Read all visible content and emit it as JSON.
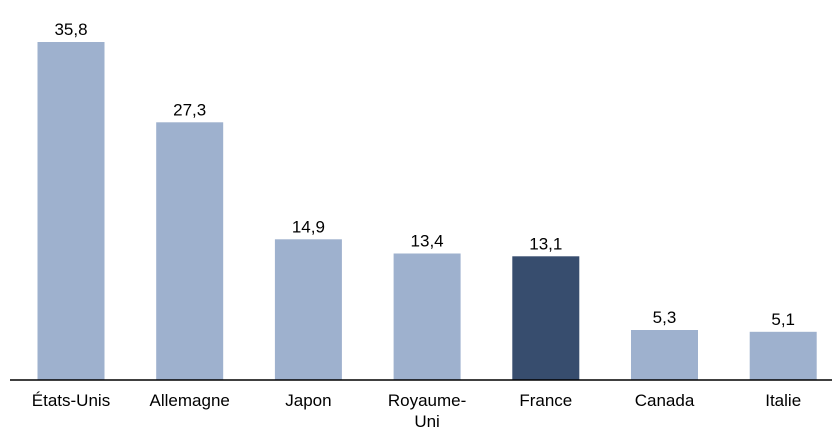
{
  "chart_data": {
    "type": "bar",
    "title": "",
    "xlabel": "",
    "ylabel": "",
    "categories": [
      "États-Unis",
      "Allemagne",
      "Japon",
      "Royaume-Uni",
      "France",
      "Canada",
      "Italie"
    ],
    "category_label_lines": [
      [
        "États-Unis"
      ],
      [
        "Allemagne"
      ],
      [
        "Japon"
      ],
      [
        "Royaume-",
        "Uni"
      ],
      [
        "France"
      ],
      [
        "Canada"
      ],
      [
        "Italie"
      ]
    ],
    "values": [
      35.8,
      27.3,
      14.9,
      13.4,
      13.1,
      5.3,
      5.1
    ],
    "value_labels": [
      "35,8",
      "27,3",
      "14,9",
      "13,4",
      "13,1",
      "5,3",
      "5,1"
    ],
    "ylim": [
      0,
      35.8
    ],
    "grid": false,
    "legend": "none",
    "colors": {
      "bar": "#9eb1ce",
      "highlight": "#374d6e",
      "axis": "#000000"
    },
    "highlight_category": "France"
  }
}
